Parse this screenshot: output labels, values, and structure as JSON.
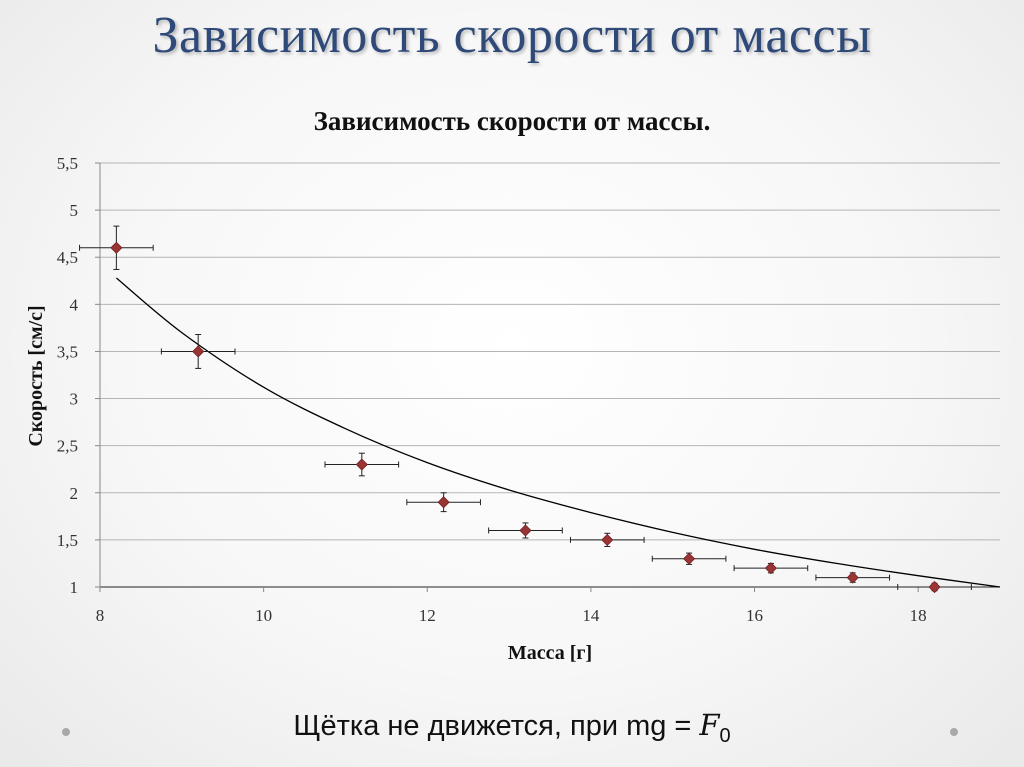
{
  "slide": {
    "title": "Зависимость скорости от массы",
    "footer_text": "Щётка не движется, при mg = ",
    "footer_symbol": "F",
    "footer_subscript": "0"
  },
  "colors": {
    "title": "#2f4a78",
    "marker": "#9b3434",
    "grid": "#b5b5b5",
    "curve": "#000000"
  },
  "chart_data": {
    "type": "scatter",
    "title": "Зависимость скорости от массы.",
    "xlabel": "Масса [г]",
    "ylabel": "Скорость [см/с]",
    "xlim": [
      8,
      19
    ],
    "ylim": [
      1,
      5.5
    ],
    "x_ticks": [
      8,
      10,
      12,
      14,
      16,
      18
    ],
    "y_ticks": [
      1,
      1.5,
      2,
      2.5,
      3,
      3.5,
      4,
      4.5,
      5,
      5.5
    ],
    "x_tick_labels": [
      "8",
      "10",
      "12",
      "14",
      "16",
      "18"
    ],
    "y_tick_labels": [
      "1",
      "1,5",
      "2",
      "2,5",
      "3",
      "3,5",
      "4",
      "4,5",
      "5",
      "5,5"
    ],
    "grid": "horizontal",
    "legend": "none",
    "series": [
      {
        "x": [
          8.2,
          9.2,
          11.2,
          12.2,
          13.2,
          14.2,
          15.2,
          16.2,
          17.2,
          18.2
        ],
        "y": [
          4.6,
          3.5,
          2.3,
          1.9,
          1.6,
          1.5,
          1.3,
          1.2,
          1.1,
          1.0
        ],
        "x_error": 0.45,
        "y_error": [
          0.23,
          0.18,
          0.12,
          0.1,
          0.08,
          0.07,
          0.06,
          0.05,
          0.05,
          0.04
        ]
      }
    ],
    "trendline": {
      "type": "power",
      "x": [
        8.2,
        9,
        10,
        11,
        12,
        13,
        14,
        15,
        16,
        17,
        18,
        19
      ],
      "y": [
        4.28,
        3.7,
        3.12,
        2.68,
        2.32,
        2.03,
        1.79,
        1.58,
        1.4,
        1.25,
        1.12,
        1.0
      ]
    }
  }
}
